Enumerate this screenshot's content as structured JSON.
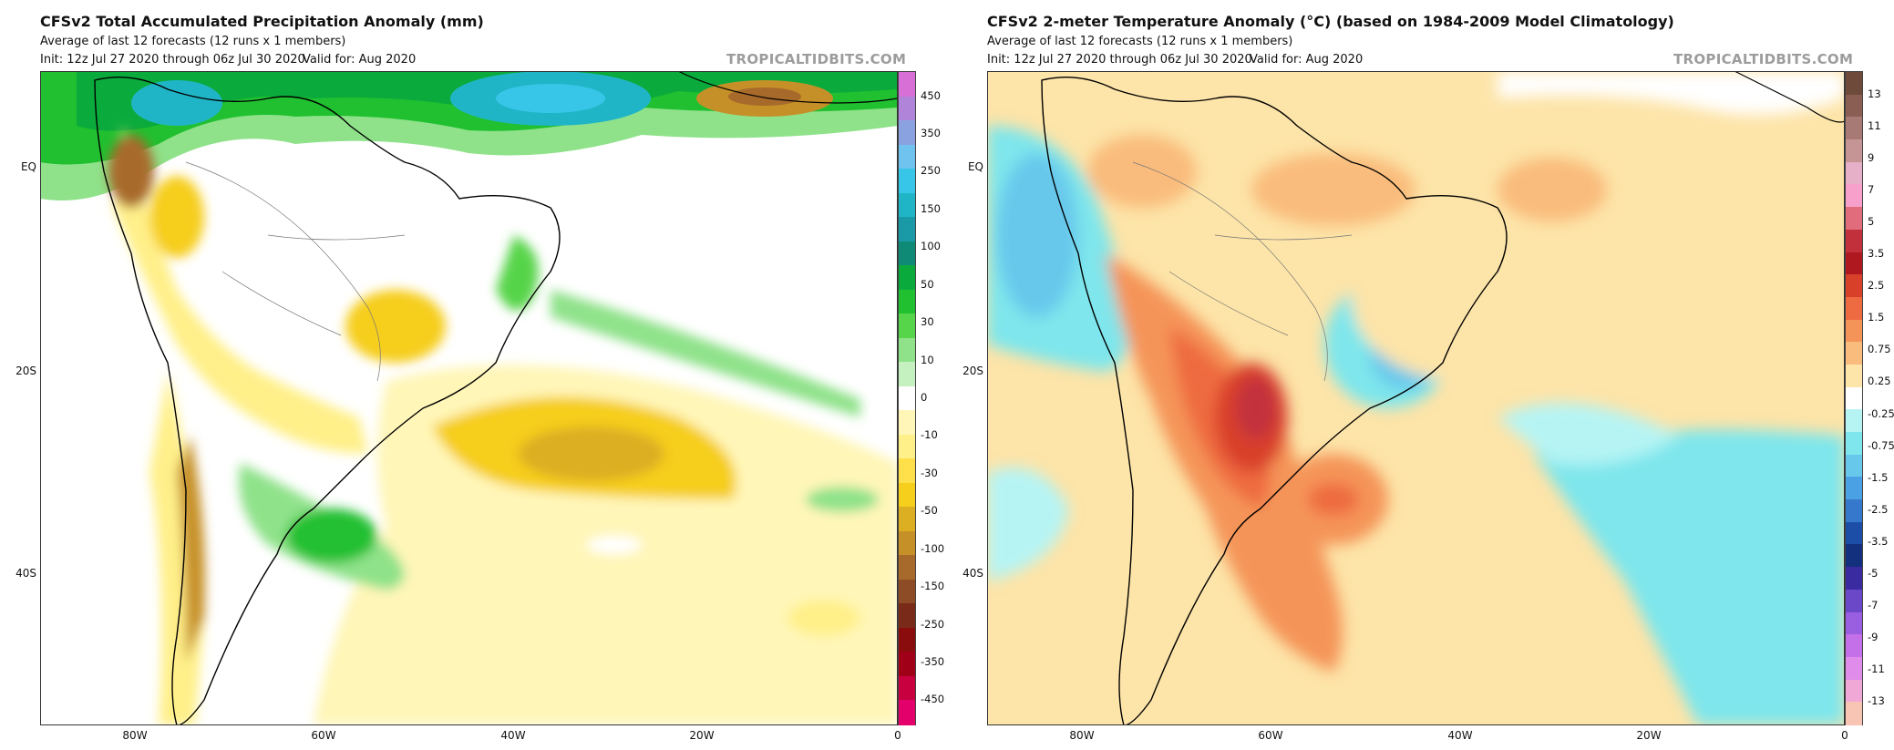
{
  "panels": [
    {
      "title": "CFSv2 Total Accumulated Precipitation Anomaly (mm)",
      "subtitle": "Average of last 12 forecasts (12 runs x 1 members)",
      "init": "Init: 12z Jul 27 2020 through 06z Jul 30 2020",
      "valid": "Valid for: Aug 2020",
      "brand": "TROPICALTIDBITS.COM",
      "lat_labels": [
        "EQ",
        "20S",
        "40S"
      ],
      "lon_labels": [
        "80W",
        "60W",
        "40W",
        "20W",
        "0"
      ],
      "colorbar": {
        "labels": [
          "450",
          "350",
          "250",
          "150",
          "100",
          "50",
          "30",
          "10",
          "0",
          "-10",
          "-30",
          "-50",
          "-100",
          "-150",
          "-250",
          "-350",
          "-450"
        ],
        "colors": [
          "#d86fd6",
          "#b084d9",
          "#8aa3e0",
          "#6fc3ee",
          "#37c6e8",
          "#20b5c6",
          "#1a9aa6",
          "#0e8a77",
          "#0aab3c",
          "#20c030",
          "#56d44a",
          "#8fe28a",
          "#c5f0c0",
          "#ffffff",
          "#fff6b8",
          "#fff08a",
          "#ffe04a",
          "#f6ce1c",
          "#dcae22",
          "#c69028",
          "#a86a2a",
          "#8e4c26",
          "#7a2a18",
          "#8a0c0c",
          "#a00018",
          "#c80040",
          "#e4006a"
        ]
      }
    },
    {
      "title": "CFSv2 2-meter Temperature Anomaly (°C) (based on 1984-2009 Model Climatology)",
      "subtitle": "Average of last 12 forecasts (12 runs x 1 members)",
      "init": "Init: 12z Jul 27 2020 through 06z Jul 30 2020",
      "valid": "Valid for: Aug 2020",
      "brand": "TROPICALTIDBITS.COM",
      "lat_labels": [
        "EQ",
        "20S",
        "40S"
      ],
      "lon_labels": [
        "80W",
        "60W",
        "40W",
        "20W",
        "0"
      ],
      "colorbar": {
        "labels": [
          "13",
          "11",
          "9",
          "7",
          "5",
          "3.5",
          "2.5",
          "1.5",
          "0.75",
          "0.25",
          "-0.25",
          "-0.75",
          "-1.5",
          "-2.5",
          "-3.5",
          "-5",
          "-7",
          "-9",
          "-11",
          "-13"
        ],
        "colors": [
          "#6e4a3a",
          "#8a5e52",
          "#a87a76",
          "#c59596",
          "#e6b0c8",
          "#f7a0cc",
          "#e06c7c",
          "#c2303c",
          "#b01820",
          "#d9402a",
          "#ee6a40",
          "#f59458",
          "#f9bc7c",
          "#fde4a8",
          "#ffffff",
          "#b6f4f4",
          "#7ee6ec",
          "#68c8ec",
          "#4aa2e4",
          "#3678cc",
          "#1c4ea8",
          "#13307e",
          "#3a2ca0",
          "#6a48c8",
          "#9a5ee0",
          "#c470e8",
          "#e08cea",
          "#f0a8d6",
          "#f8c4b4"
        ]
      }
    }
  ]
}
